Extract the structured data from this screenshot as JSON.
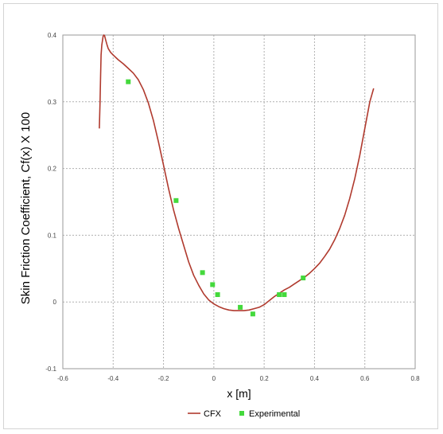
{
  "chart_data": {
    "type": "line",
    "title": "",
    "xlabel": "x [m]",
    "ylabel": "Skin Friction Coefficient, Cf(x) X 100",
    "xlim": [
      -0.6,
      0.8
    ],
    "ylim": [
      -0.1,
      0.4
    ],
    "x_ticks": [
      "-0.6",
      "-0.4",
      "-0.2",
      "0",
      "0.2",
      "0.4",
      "0.6",
      "0.8"
    ],
    "y_ticks": [
      "0.4",
      "0.3",
      "0.2",
      "0.1",
      "0",
      "-0.1"
    ],
    "grid": true,
    "legend_position": "bottom",
    "colors": {
      "cfx": "#b03a2e",
      "experimental": "#44d93c",
      "grid": "#b0b0b0",
      "axis_box": "#9a9a9a"
    },
    "series": [
      {
        "name": "CFX",
        "kind": "line",
        "x": [
          -0.455,
          -0.452,
          -0.45,
          -0.448,
          -0.445,
          -0.442,
          -0.44,
          -0.437,
          -0.434,
          -0.43,
          -0.425,
          -0.42,
          -0.41,
          -0.4,
          -0.38,
          -0.36,
          -0.34,
          -0.32,
          -0.3,
          -0.28,
          -0.26,
          -0.24,
          -0.22,
          -0.2,
          -0.18,
          -0.16,
          -0.14,
          -0.12,
          -0.1,
          -0.08,
          -0.06,
          -0.04,
          -0.02,
          0.0,
          0.02,
          0.04,
          0.06,
          0.08,
          0.1,
          0.12,
          0.14,
          0.16,
          0.18,
          0.2,
          0.22,
          0.24,
          0.26,
          0.28,
          0.3,
          0.32,
          0.34,
          0.36,
          0.38,
          0.4,
          0.42,
          0.44,
          0.46,
          0.48,
          0.5,
          0.52,
          0.54,
          0.56,
          0.58,
          0.6,
          0.62,
          0.635
        ],
        "y": [
          0.26,
          0.3,
          0.34,
          0.37,
          0.385,
          0.393,
          0.398,
          0.4,
          0.399,
          0.393,
          0.386,
          0.38,
          0.374,
          0.37,
          0.363,
          0.357,
          0.35,
          0.343,
          0.333,
          0.318,
          0.298,
          0.272,
          0.24,
          0.205,
          0.17,
          0.138,
          0.11,
          0.085,
          0.06,
          0.04,
          0.025,
          0.012,
          0.003,
          -0.003,
          -0.007,
          -0.01,
          -0.012,
          -0.013,
          -0.013,
          -0.013,
          -0.012,
          -0.01,
          -0.008,
          -0.004,
          0.002,
          0.008,
          0.013,
          0.018,
          0.022,
          0.027,
          0.032,
          0.037,
          0.043,
          0.05,
          0.058,
          0.068,
          0.079,
          0.093,
          0.11,
          0.13,
          0.155,
          0.185,
          0.22,
          0.26,
          0.3,
          0.32
        ]
      },
      {
        "name": "Experimental",
        "kind": "scatter",
        "x": [
          -0.34,
          -0.15,
          -0.045,
          -0.005,
          0.015,
          0.105,
          0.155,
          0.26,
          0.28,
          0.355
        ],
        "y": [
          0.33,
          0.152,
          0.044,
          0.026,
          0.011,
          -0.008,
          -0.018,
          0.011,
          0.011,
          0.036
        ]
      }
    ]
  }
}
